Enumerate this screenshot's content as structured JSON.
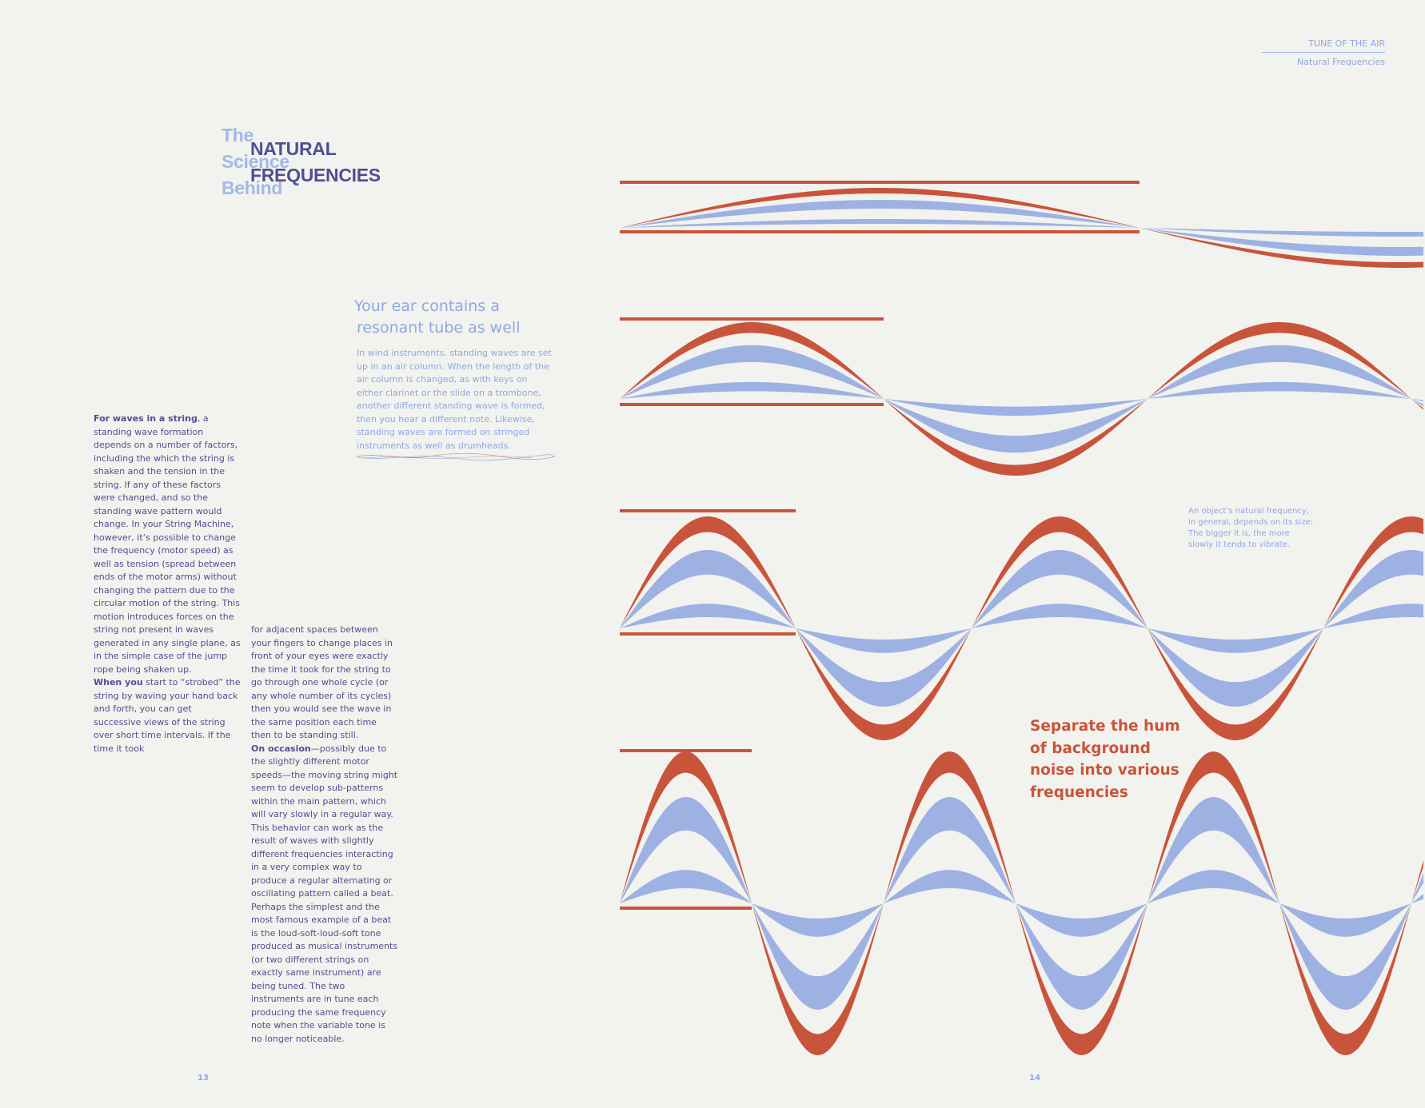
{
  "header": {
    "section": "TUNE OF THE AIR",
    "subsection": "Natural Frequencies"
  },
  "title": {
    "light_lines": [
      "The",
      "Science",
      "Behind"
    ],
    "dark_lines": [
      "NATURAL",
      "FREQUENCIES"
    ]
  },
  "subheading": {
    "lines": [
      "Your ear contains a",
      "resonant tube as well"
    ]
  },
  "intro_paragraph": "In wind instruments, standing waves are set up in an air column. When the length of the air column is changed, as with keys on either clarinet or the slide on a trombone, another different standing wave is formed, then you hear a different note. Likewise, standing waves are formed on stringed instruments as well as drumheads.",
  "column1": {
    "lead1": "For waves in a string",
    "text1": ", a standing wave formation depends on a number of factors, including the which the string is shaken and the tension in the string. If any of these factors were changed, and so  the standing wave pattern would change. In your String Machine, however, it’s possible to change the frequency (motor speed) as well as tension (spread between ends of the motor arms) without changing the pattern due to the circular motion of the string. This motion introduces forces on the string not present in waves generated in any single plane, as in the simple case of the jump rope being shaken up.",
    "lead2": "When you",
    "text2": " start to “strobed” the string by waving your hand back and forth, you can get successive views of the string over short time intervals. If the time it took"
  },
  "column2": {
    "text1": "for adjacent spaces between your fingers to change places in front of your eyes were exactly the time it took for the string to go through one whole cycle (or any whole number of its cycles) then you would see the wave in the same position each time then to be standing still.",
    "lead2": "On occasion",
    "text2": "—possibly due to the slightly different motor speeds—the moving string might seem to develop sub-patterns within the main pattern, which will vary slowly in a regular way. This behavior can work as the result of waves with slightly different frequencies interacting in a very complex way to produce a regular alternating or oscillating pattern called a beat. Perhaps the simplest and the most famous example of a beat is the loud-soft-loud-soft tone produced as musical instruments (or two different strings on exactly same instrument) are being tuned. The two instruments are in tune each producing the same frequency note when the variable tone is no longer noticeable."
  },
  "side_note": "An object’s natural frequency, in general, depends on its size: The bigger it is, the more slowly it tends to vibrate.",
  "pull_quote": {
    "lines": [
      "Separate the hum",
      "of background",
      "noise into various",
      "frequencies"
    ]
  },
  "page_numbers": {
    "left": "13",
    "right": "14"
  },
  "colors": {
    "background": "#f2f2ee",
    "accent_red": "#c8553b",
    "wave_blue": "#9db2e3",
    "text_dark": "#4f4f93",
    "text_light": "#8fa8e4"
  },
  "wave_harmonics": [
    1,
    2,
    3,
    4
  ]
}
